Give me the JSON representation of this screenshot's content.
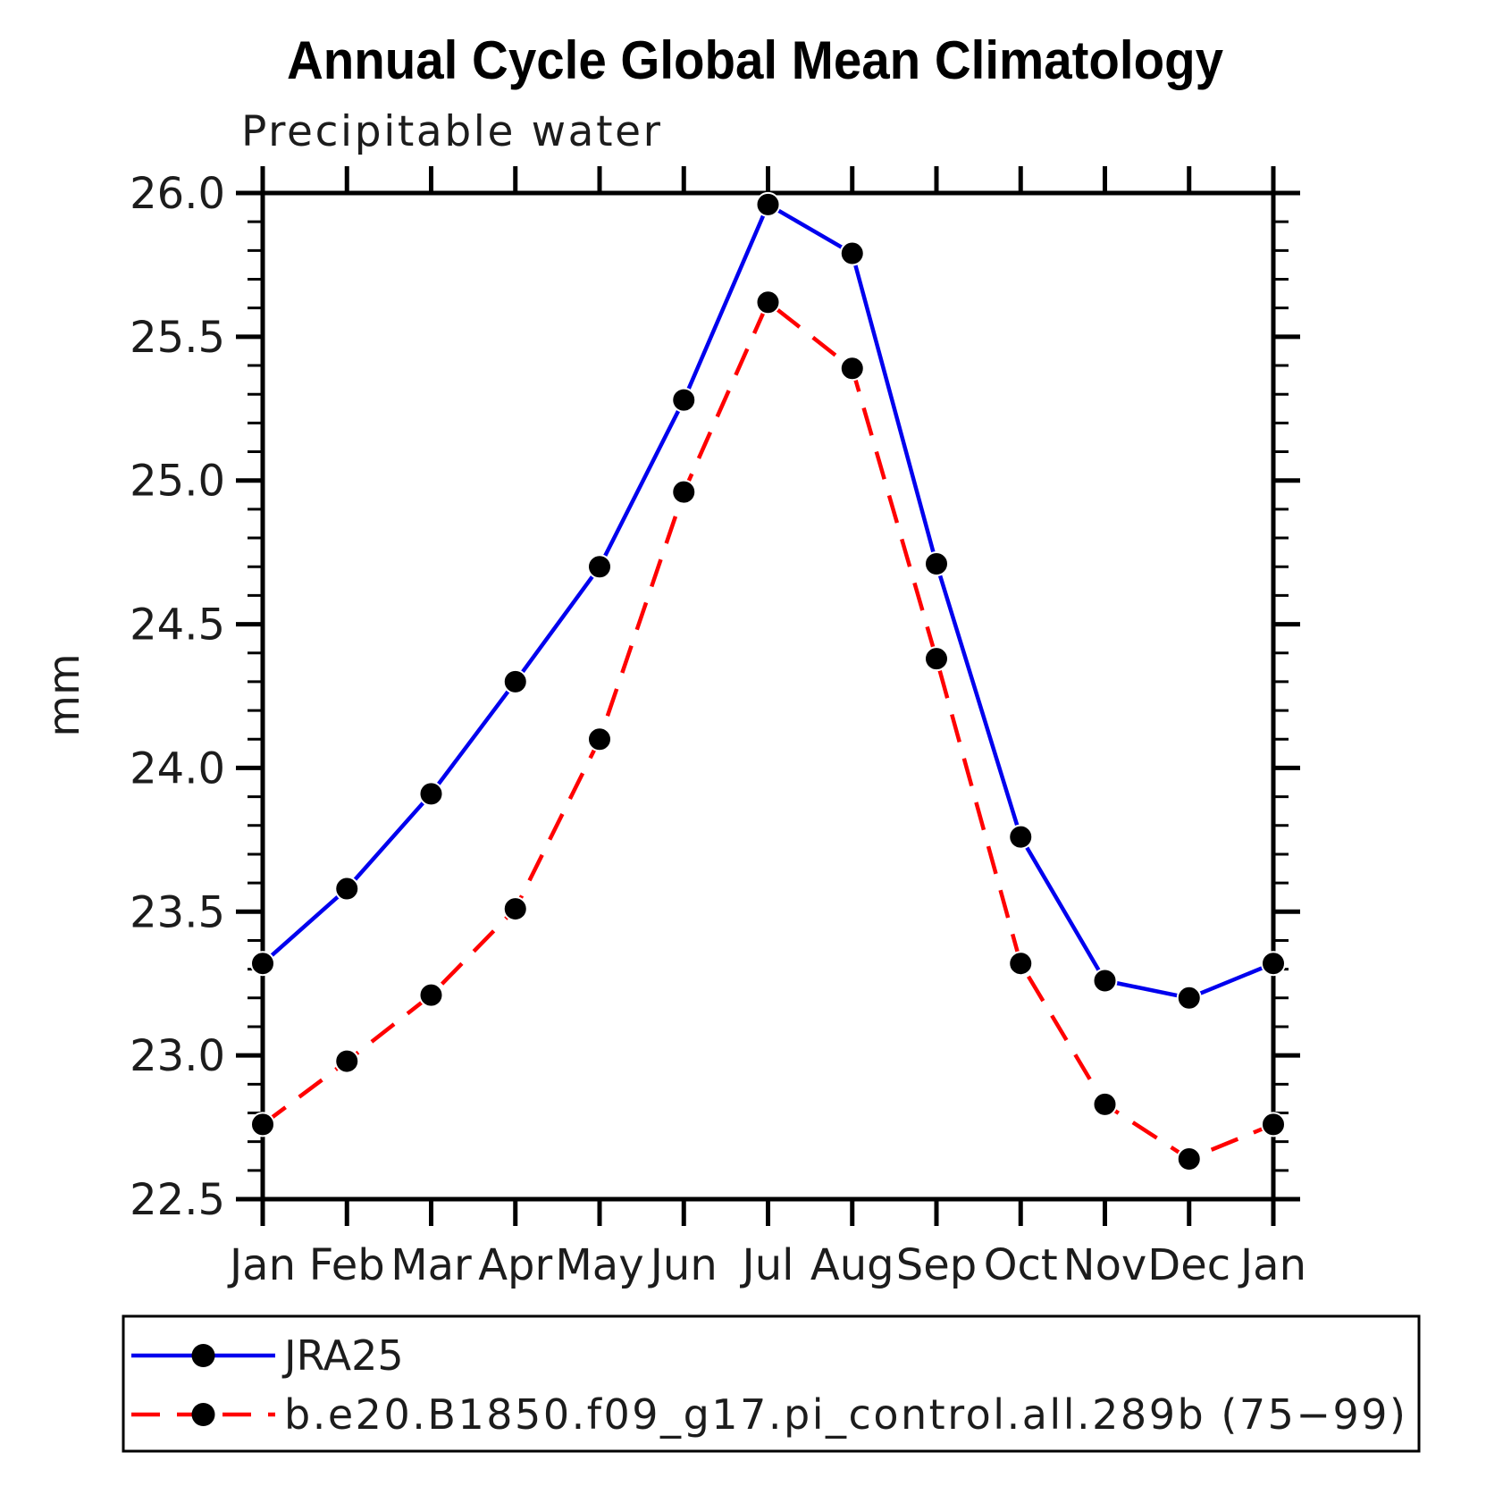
{
  "title": "Annual Cycle Global Mean Climatology",
  "subtitle": "Precipitable water",
  "ylabel": "mm",
  "colors": {
    "series1": "#0000ee",
    "series2": "#ff0000",
    "marker": "#000000",
    "axis": "#000000",
    "background": "#ffffff"
  },
  "legend": {
    "entries": [
      {
        "label": "JRA25",
        "color": "#0000ee",
        "style": "solid"
      },
      {
        "label": "b.e20.B1850.f09_g17.pi_control.all.289b (75−99)",
        "color": "#ff0000",
        "style": "dashed"
      }
    ]
  },
  "chart_data": {
    "type": "line",
    "title": "Annual Cycle Global Mean Climatology",
    "subtitle": "Precipitable water",
    "xlabel": "",
    "ylabel": "mm",
    "categories": [
      "Jan",
      "Feb",
      "Mar",
      "Apr",
      "May",
      "Jun",
      "Jul",
      "Aug",
      "Sep",
      "Oct",
      "Nov",
      "Dec",
      "Jan"
    ],
    "ylim": [
      22.5,
      26.0
    ],
    "yticks": [
      22.5,
      23.0,
      23.5,
      24.0,
      24.5,
      25.0,
      25.5,
      26.0
    ],
    "ytick_labels": [
      "22.5",
      "23.0",
      "23.5",
      "24.0",
      "24.5",
      "25.0",
      "25.5",
      "26.0"
    ],
    "y_minor_step": 0.1,
    "grid": false,
    "legend_position": "bottom-left-box",
    "series": [
      {
        "name": "JRA25",
        "color": "#0000ee",
        "line_style": "solid",
        "marker": "filled-black-circle",
        "values": [
          23.32,
          23.58,
          23.91,
          24.3,
          24.7,
          25.28,
          25.96,
          25.79,
          24.71,
          23.76,
          23.26,
          23.2,
          23.32
        ]
      },
      {
        "name": "b.e20.B1850.f09_g17.pi_control.all.289b (75−99)",
        "color": "#ff0000",
        "line_style": "dashed",
        "marker": "filled-black-circle",
        "values": [
          22.76,
          22.98,
          23.21,
          23.51,
          24.1,
          24.96,
          25.62,
          25.39,
          24.38,
          23.32,
          22.83,
          22.64,
          22.76
        ]
      }
    ]
  }
}
